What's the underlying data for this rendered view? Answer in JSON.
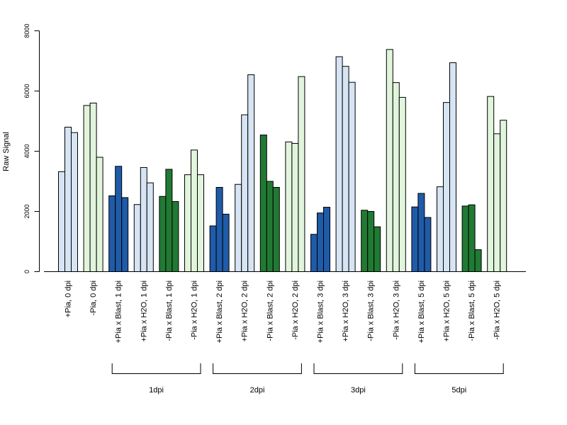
{
  "chart_data": {
    "type": "bar",
    "title": "",
    "xlabel": "",
    "ylabel": "Raw Signal",
    "ylim": [
      0,
      8000
    ],
    "yticks": [
      0,
      2000,
      4000,
      6000,
      8000
    ],
    "grid": false,
    "colors": {
      "light_blue": "#d6e4f4",
      "light_green": "#e1f5dc",
      "dark_blue": "#1f5ba8",
      "dark_green": "#217a33"
    },
    "categories": [
      {
        "label": "+Pia, 0 dpi",
        "color": "light_blue",
        "values": [
          3320,
          4800,
          4620
        ]
      },
      {
        "label": "-Pia, 0 dpi",
        "color": "light_green",
        "values": [
          5520,
          5600,
          3800
        ]
      },
      {
        "label": "+Pia x Blast, 1 dpi",
        "color": "dark_blue",
        "values": [
          2520,
          3500,
          2460
        ]
      },
      {
        "label": "+Pia x H2O, 1 dpi",
        "color": "light_blue",
        "values": [
          2230,
          3460,
          2950
        ]
      },
      {
        "label": "-Pia x Blast, 1 dpi",
        "color": "dark_green",
        "values": [
          2500,
          3400,
          2330
        ]
      },
      {
        "label": "-Pia x H2O, 1 dpi",
        "color": "light_green",
        "values": [
          3220,
          4040,
          3220
        ]
      },
      {
        "label": "+Pia x Blast, 2 dpi",
        "color": "dark_blue",
        "values": [
          1520,
          2800,
          1910
        ]
      },
      {
        "label": "+Pia x H2O, 2 dpi",
        "color": "light_blue",
        "values": [
          2900,
          5210,
          6540
        ]
      },
      {
        "label": "-Pia x Blast, 2 dpi",
        "color": "dark_green",
        "values": [
          4540,
          3000,
          2800
        ]
      },
      {
        "label": "-Pia x H2O, 2 dpi",
        "color": "light_green",
        "values": [
          4310,
          4260,
          6480
        ]
      },
      {
        "label": "+Pia x Blast, 3 dpi",
        "color": "dark_blue",
        "values": [
          1240,
          1950,
          2140
        ]
      },
      {
        "label": "+Pia x H2O, 3 dpi",
        "color": "light_blue",
        "values": [
          7140,
          6820,
          6290
        ]
      },
      {
        "label": "-Pia x Blast, 3 dpi",
        "color": "dark_green",
        "values": [
          2040,
          2000,
          1490
        ]
      },
      {
        "label": "-Pia x H2O, 3 dpi",
        "color": "light_green",
        "values": [
          7380,
          6280,
          5790
        ]
      },
      {
        "label": "+Pia x Blast, 5 dpi",
        "color": "dark_blue",
        "values": [
          2150,
          2600,
          1800
        ]
      },
      {
        "label": "+Pia x H2O, 5 dpi",
        "color": "light_blue",
        "values": [
          2820,
          5620,
          6940
        ]
      },
      {
        "label": "-Pia x Blast, 5 dpi",
        "color": "dark_green",
        "values": [
          2180,
          2220,
          730
        ]
      },
      {
        "label": "-Pia x H2O, 5 dpi",
        "color": "light_green",
        "values": [
          5820,
          4580,
          5030
        ]
      }
    ],
    "groups": [
      {
        "label": "1dpi",
        "start": 2,
        "end": 5
      },
      {
        "label": "2dpi",
        "start": 6,
        "end": 9
      },
      {
        "label": "3dpi",
        "start": 10,
        "end": 13
      },
      {
        "label": "5dpi",
        "start": 14,
        "end": 17
      }
    ]
  }
}
